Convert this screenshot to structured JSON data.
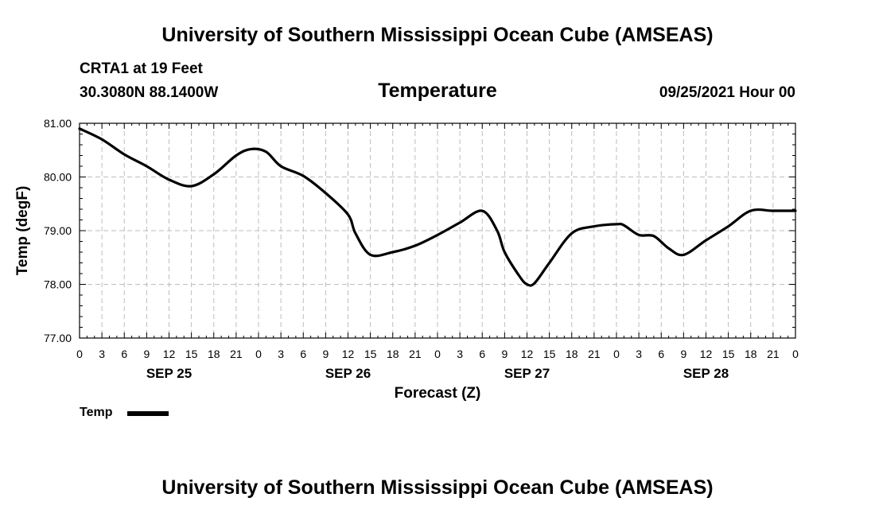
{
  "page": {
    "header_title": "University of Southern Mississippi Ocean Cube (AMSEAS)",
    "footer_title": "University of Southern Mississippi Ocean Cube (AMSEAS)",
    "station": "CRTA1 at 19 Feet",
    "coordinates": "30.3080N  88.1400W",
    "datetime": "09/25/2021 Hour 00"
  },
  "legend": {
    "label": "Temp",
    "color": "#000000"
  },
  "chart_data": {
    "type": "line",
    "title": "Temperature",
    "xlabel": "Forecast (Z)",
    "ylabel": "Temp (degF)",
    "ylim": [
      77.0,
      81.0
    ],
    "xlim": [
      0,
      96
    ],
    "y_ticks": [
      "77.00",
      "78.00",
      "79.00",
      "80.00",
      "81.00"
    ],
    "y_tick_values": [
      77,
      78,
      79,
      80,
      81
    ],
    "x_tick_labels": [
      "0",
      "3",
      "6",
      "9",
      "12",
      "15",
      "18",
      "21",
      "0",
      "3",
      "6",
      "9",
      "12",
      "15",
      "18",
      "21",
      "0",
      "3",
      "6",
      "9",
      "12",
      "15",
      "18",
      "21",
      "0",
      "3",
      "6",
      "9",
      "12",
      "15",
      "18",
      "21",
      "0"
    ],
    "x_tick_step_hours": 3,
    "day_labels": [
      {
        "label": "SEP 25",
        "hour": 12
      },
      {
        "label": "SEP 26",
        "hour": 36
      },
      {
        "label": "SEP 27",
        "hour": 60
      },
      {
        "label": "SEP 28",
        "hour": 84
      }
    ],
    "grid": true,
    "series": [
      {
        "name": "Temp",
        "x": [
          0,
          3,
          6,
          9,
          12,
          15,
          18,
          21,
          23,
          25,
          27,
          30,
          33,
          36,
          37,
          39,
          42,
          45,
          48,
          51,
          54,
          56,
          57,
          59,
          60,
          61,
          63,
          66,
          69,
          72,
          73,
          75,
          77,
          79,
          81,
          84,
          87,
          90,
          93,
          96
        ],
        "values": [
          80.9,
          80.7,
          80.42,
          80.2,
          79.95,
          79.83,
          80.05,
          80.4,
          80.52,
          80.47,
          80.2,
          80.02,
          79.7,
          79.3,
          78.95,
          78.55,
          78.6,
          78.72,
          78.92,
          79.15,
          79.37,
          79.0,
          78.6,
          78.15,
          78.0,
          78.02,
          78.4,
          78.95,
          79.08,
          79.12,
          79.1,
          78.92,
          78.9,
          78.67,
          78.55,
          78.82,
          79.08,
          79.37,
          79.37,
          79.37
        ]
      }
    ]
  }
}
